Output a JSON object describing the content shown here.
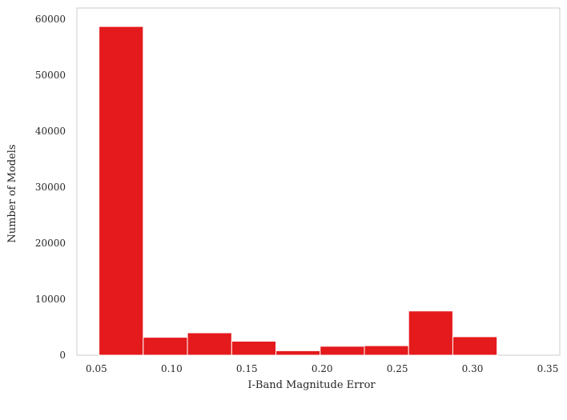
{
  "chart_data": {
    "type": "bar",
    "histogram": true,
    "xlabel": "I-Band Magnitude Error",
    "ylabel": "Number of Models",
    "xlim": [
      0.037,
      0.358
    ],
    "ylim": [
      0,
      62000
    ],
    "x_ticks": [
      "0.05",
      "0.10",
      "0.15",
      "0.20",
      "0.25",
      "0.30",
      "0.35"
    ],
    "y_ticks": [
      "0",
      "10000",
      "20000",
      "30000",
      "40000",
      "50000",
      "60000"
    ],
    "grid": false,
    "bar_color": "#e41a1c",
    "bins": [
      {
        "start": 0.0517,
        "end": 0.0811,
        "count": 58700
      },
      {
        "start": 0.0811,
        "end": 0.1105,
        "count": 3200
      },
      {
        "start": 0.1105,
        "end": 0.1399,
        "count": 4000
      },
      {
        "start": 0.1399,
        "end": 0.1693,
        "count": 2500
      },
      {
        "start": 0.1693,
        "end": 0.1987,
        "count": 800
      },
      {
        "start": 0.1987,
        "end": 0.2281,
        "count": 1600
      },
      {
        "start": 0.2281,
        "end": 0.2575,
        "count": 1700
      },
      {
        "start": 0.2575,
        "end": 0.2869,
        "count": 7900
      },
      {
        "start": 0.2869,
        "end": 0.3163,
        "count": 3300
      },
      {
        "start": 0.3163,
        "end": 0.3457,
        "count": 0
      }
    ]
  }
}
